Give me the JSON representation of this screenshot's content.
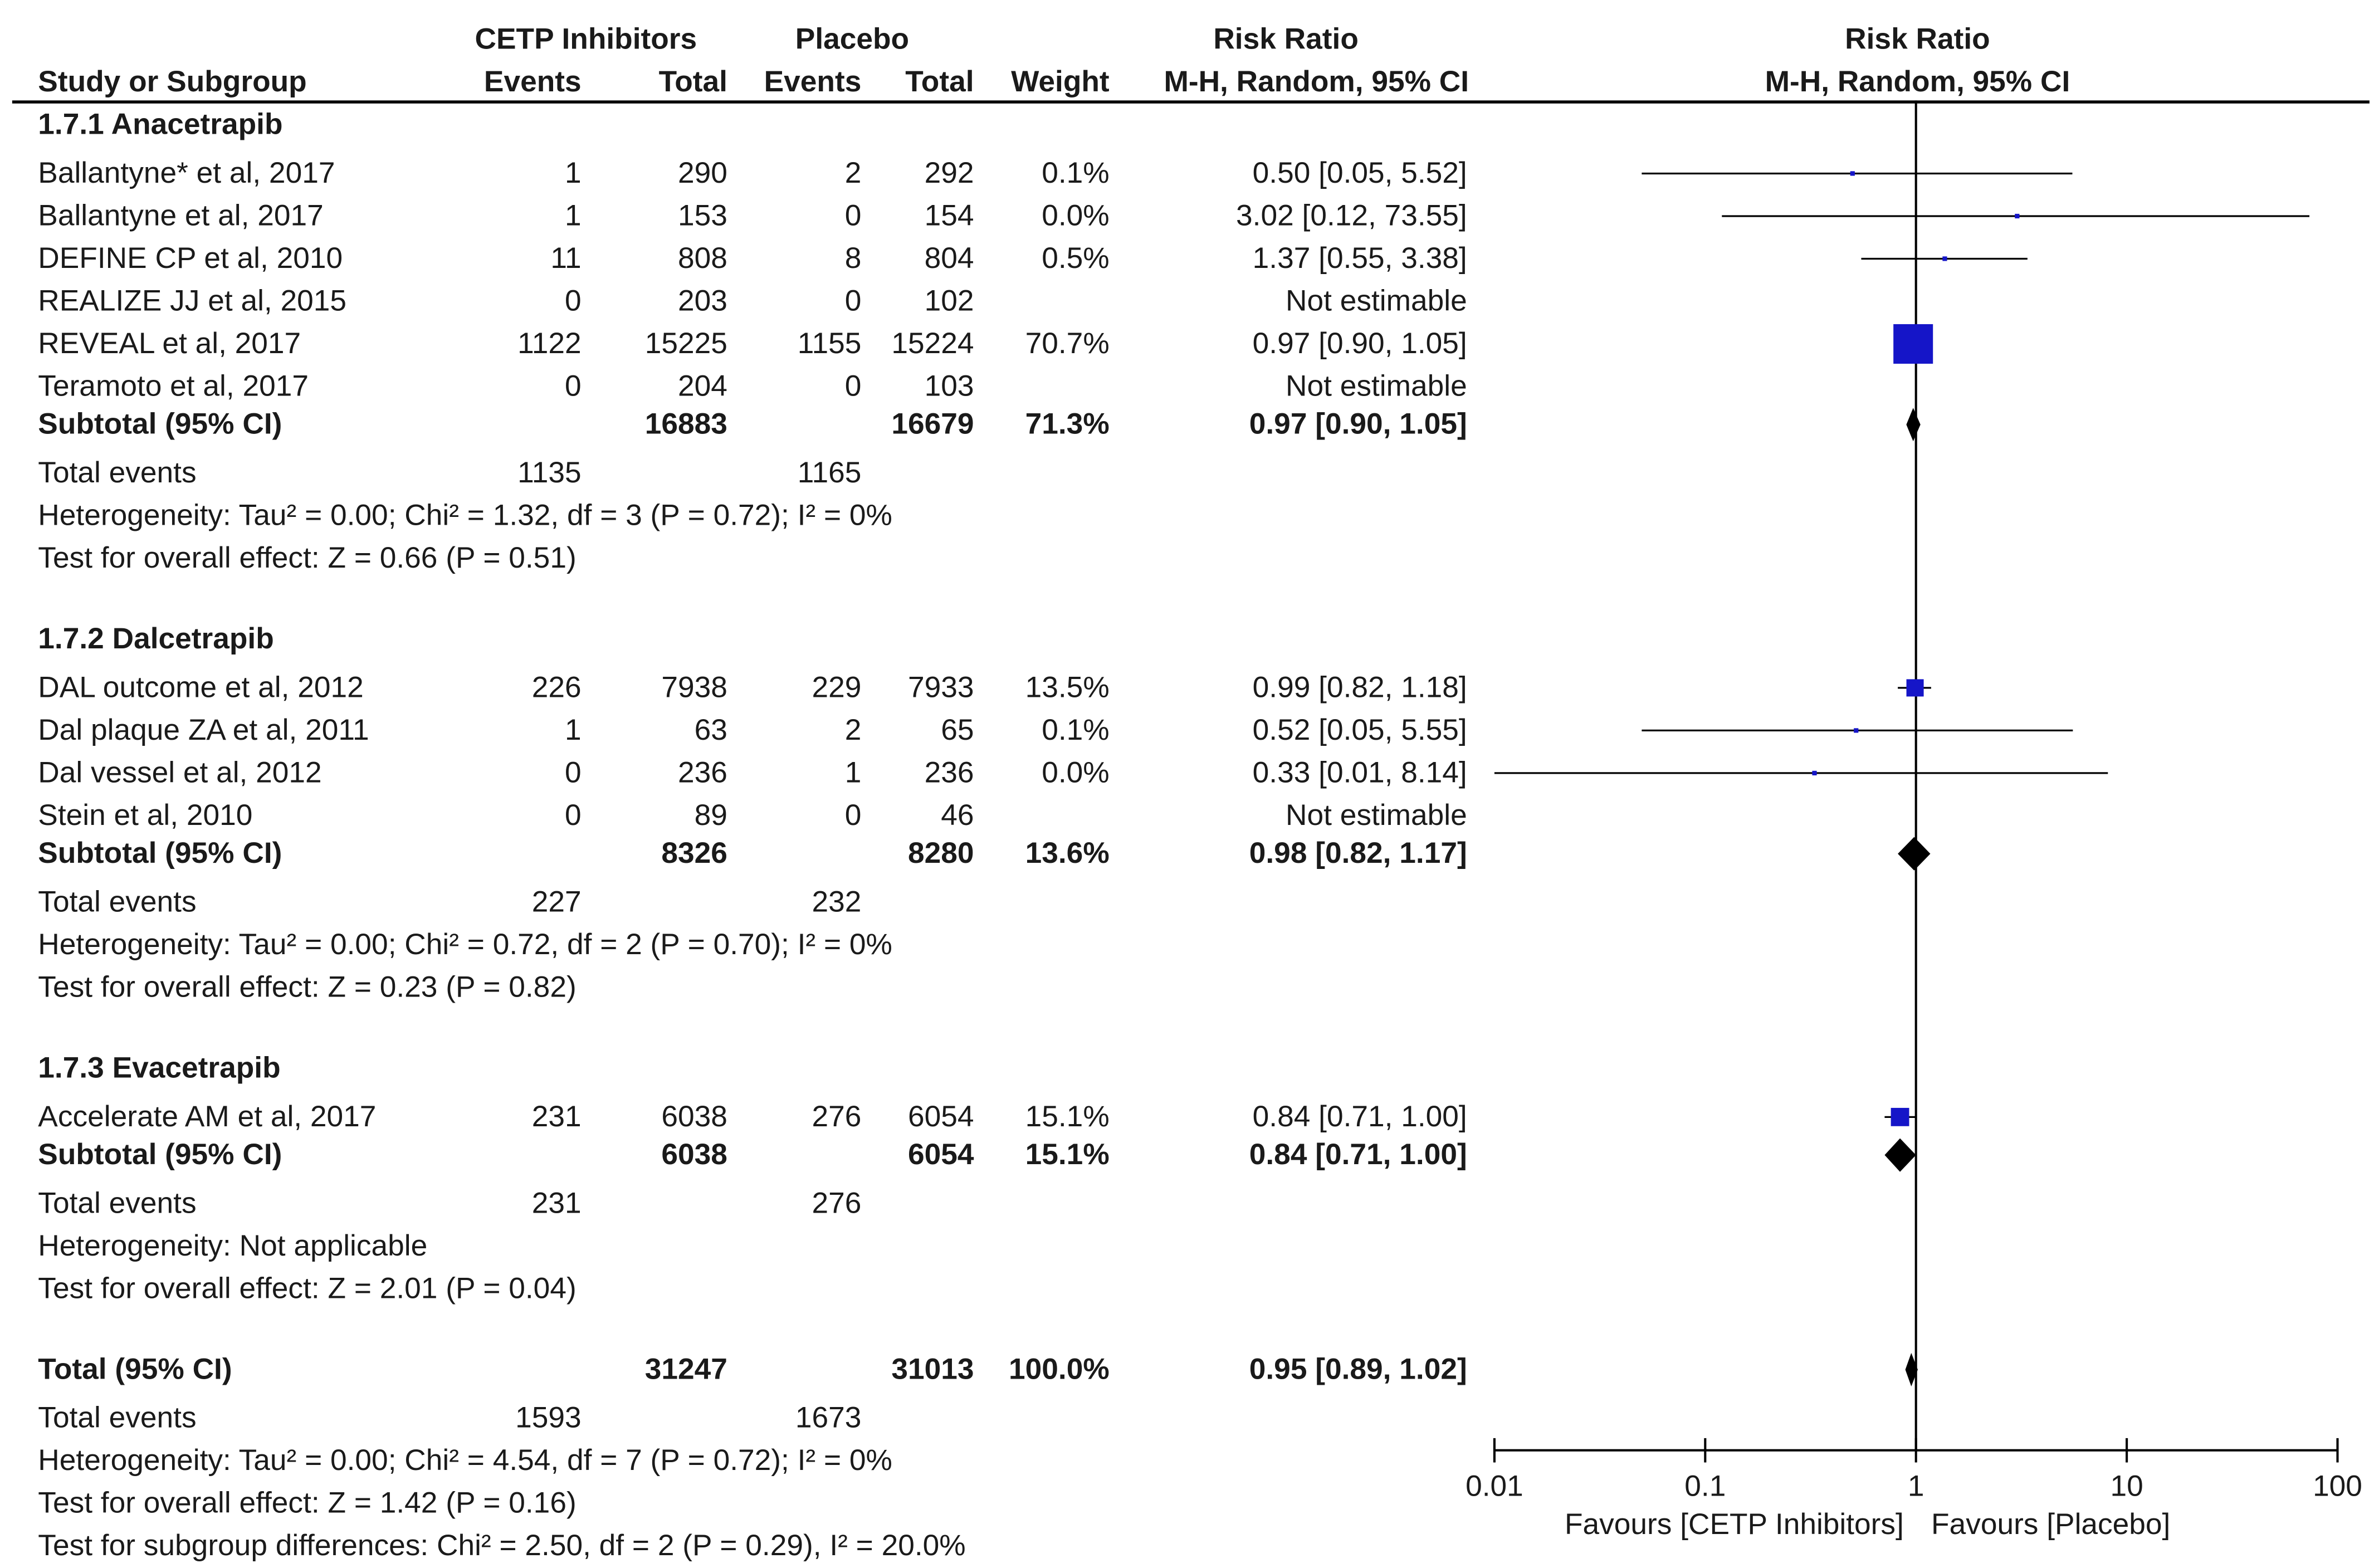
{
  "columns": {
    "study": "Study or Subgroup",
    "group1": "CETP Inhibitors",
    "group2": "Placebo",
    "events": "Events",
    "total": "Total",
    "weight": "Weight",
    "rr_title": "Risk Ratio",
    "rr_method": "M-H, Random, 95% CI"
  },
  "plot_header": {
    "title": "Risk Ratio",
    "method": "M-H, Random, 95% CI"
  },
  "subgroups": [
    {
      "name": "1.7.1 Anacetrapib",
      "studies": [
        {
          "name": "Ballantyne* et al, 2017",
          "e1": "1",
          "t1": "290",
          "e2": "2",
          "t2": "292",
          "weight": "0.1%",
          "ci": "0.50 [0.05, 5.52]"
        },
        {
          "name": "Ballantyne et al, 2017",
          "e1": "1",
          "t1": "153",
          "e2": "0",
          "t2": "154",
          "weight": "0.0%",
          "ci": "3.02 [0.12, 73.55]"
        },
        {
          "name": "DEFINE CP et al, 2010",
          "e1": "11",
          "t1": "808",
          "e2": "8",
          "t2": "804",
          "weight": "0.5%",
          "ci": "1.37 [0.55, 3.38]"
        },
        {
          "name": "REALIZE JJ et al, 2015",
          "e1": "0",
          "t1": "203",
          "e2": "0",
          "t2": "102",
          "weight": "",
          "ci": "Not estimable"
        },
        {
          "name": "REVEAL et al, 2017",
          "e1": "1122",
          "t1": "15225",
          "e2": "1155",
          "t2": "15224",
          "weight": "70.7%",
          "ci": "0.97 [0.90, 1.05]"
        },
        {
          "name": "Teramoto et al, 2017",
          "e1": "0",
          "t1": "204",
          "e2": "0",
          "t2": "103",
          "weight": "",
          "ci": "Not estimable"
        }
      ],
      "subtotal": {
        "label": "Subtotal (95% CI)",
        "t1": "16883",
        "t2": "16679",
        "weight": "71.3%",
        "ci": "0.97 [0.90, 1.05]"
      },
      "total_events": {
        "label": "Total events",
        "e1": "1135",
        "e2": "1165"
      },
      "heterogeneity": "Heterogeneity: Tau² = 0.00; Chi² = 1.32, df = 3 (P = 0.72); I² = 0%",
      "overall": "Test for overall effect: Z = 0.66 (P = 0.51)"
    },
    {
      "name": "1.7.2 Dalcetrapib",
      "studies": [
        {
          "name": "DAL outcome et al, 2012",
          "e1": "226",
          "t1": "7938",
          "e2": "229",
          "t2": "7933",
          "weight": "13.5%",
          "ci": "0.99 [0.82, 1.18]"
        },
        {
          "name": "Dal plaque ZA et al, 2011",
          "e1": "1",
          "t1": "63",
          "e2": "2",
          "t2": "65",
          "weight": "0.1%",
          "ci": "0.52 [0.05, 5.55]"
        },
        {
          "name": "Dal vessel et al, 2012",
          "e1": "0",
          "t1": "236",
          "e2": "1",
          "t2": "236",
          "weight": "0.0%",
          "ci": "0.33 [0.01, 8.14]"
        },
        {
          "name": "Stein et al, 2010",
          "e1": "0",
          "t1": "89",
          "e2": "0",
          "t2": "46",
          "weight": "",
          "ci": "Not estimable"
        }
      ],
      "subtotal": {
        "label": "Subtotal (95% CI)",
        "t1": "8326",
        "t2": "8280",
        "weight": "13.6%",
        "ci": "0.98 [0.82, 1.17]"
      },
      "total_events": {
        "label": "Total events",
        "e1": "227",
        "e2": "232"
      },
      "heterogeneity": "Heterogeneity: Tau² = 0.00; Chi² = 0.72, df = 2 (P = 0.70); I² = 0%",
      "overall": "Test for overall effect: Z = 0.23 (P = 0.82)"
    },
    {
      "name": "1.7.3 Evacetrapib",
      "studies": [
        {
          "name": "Accelerate AM et al, 2017",
          "e1": "231",
          "t1": "6038",
          "e2": "276",
          "t2": "6054",
          "weight": "15.1%",
          "ci": "0.84 [0.71, 1.00]"
        }
      ],
      "subtotal": {
        "label": "Subtotal (95% CI)",
        "t1": "6038",
        "t2": "6054",
        "weight": "15.1%",
        "ci": "0.84 [0.71, 1.00]"
      },
      "total_events": {
        "label": "Total events",
        "e1": "231",
        "e2": "276"
      },
      "heterogeneity": "Heterogeneity: Not applicable",
      "overall": "Test for overall effect: Z = 2.01 (P = 0.04)"
    }
  ],
  "total": {
    "label": "Total (95% CI)",
    "t1": "31247",
    "t2": "31013",
    "weight": "100.0%",
    "ci": "0.95 [0.89, 1.02]",
    "total_events": {
      "label": "Total events",
      "e1": "1593",
      "e2": "1673"
    },
    "heterogeneity": "Heterogeneity: Tau² = 0.00; Chi² = 4.54, df = 7 (P = 0.72); I² = 0%",
    "overall": "Test for overall effect: Z = 1.42 (P = 0.16)",
    "subgroup_diff": "Test for subgroup differences: Chi² = 2.50, df = 2 (P = 0.29), I² = 20.0%"
  },
  "colors": {
    "study_marker": "#1515c8",
    "summary_diamond": "#000000",
    "text": "#1a1a1a"
  },
  "chart_data": {
    "type": "forest",
    "title": "Risk Ratio",
    "method": "M-H, Random, 95% CI",
    "scale": "log",
    "xlim": [
      0.01,
      100
    ],
    "ticks": [
      0.01,
      0.1,
      1,
      10,
      100
    ],
    "tick_labels": [
      "0.01",
      "0.1",
      "1",
      "10",
      "100"
    ],
    "reference_line": 1,
    "favours_left": "Favours [CETP Inhibitors]",
    "favours_right": "Favours [Placebo]",
    "studies": [
      {
        "name": "Ballantyne* et al, 2017",
        "rr": 0.5,
        "lo": 0.05,
        "hi": 5.52,
        "weight": 0.1
      },
      {
        "name": "Ballantyne et al, 2017",
        "rr": 3.02,
        "lo": 0.12,
        "hi": 73.55,
        "weight": 0.0
      },
      {
        "name": "DEFINE CP et al, 2010",
        "rr": 1.37,
        "lo": 0.55,
        "hi": 3.38,
        "weight": 0.5
      },
      {
        "name": "REALIZE JJ et al, 2015",
        "rr": null,
        "lo": null,
        "hi": null,
        "weight": null
      },
      {
        "name": "REVEAL et al, 2017",
        "rr": 0.97,
        "lo": 0.9,
        "hi": 1.05,
        "weight": 70.7
      },
      {
        "name": "Teramoto et al, 2017",
        "rr": null,
        "lo": null,
        "hi": null,
        "weight": null
      },
      {
        "name": "Subtotal 1.7.1 Anacetrapib",
        "rr": 0.97,
        "lo": 0.9,
        "hi": 1.05,
        "summary": true
      },
      {
        "name": "DAL outcome et al, 2012",
        "rr": 0.99,
        "lo": 0.82,
        "hi": 1.18,
        "weight": 13.5
      },
      {
        "name": "Dal plaque ZA et al, 2011",
        "rr": 0.52,
        "lo": 0.05,
        "hi": 5.55,
        "weight": 0.1
      },
      {
        "name": "Dal vessel et al, 2012",
        "rr": 0.33,
        "lo": 0.01,
        "hi": 8.14,
        "weight": 0.0
      },
      {
        "name": "Stein et al, 2010",
        "rr": null,
        "lo": null,
        "hi": null,
        "weight": null
      },
      {
        "name": "Subtotal 1.7.2 Dalcetrapib",
        "rr": 0.98,
        "lo": 0.82,
        "hi": 1.17,
        "summary": true
      },
      {
        "name": "Accelerate AM et al, 2017",
        "rr": 0.84,
        "lo": 0.71,
        "hi": 1.0,
        "weight": 15.1
      },
      {
        "name": "Subtotal 1.7.3 Evacetrapib",
        "rr": 0.84,
        "lo": 0.71,
        "hi": 1.0,
        "summary": true
      },
      {
        "name": "Total (95% CI)",
        "rr": 0.95,
        "lo": 0.89,
        "hi": 1.02,
        "summary": true
      }
    ]
  }
}
